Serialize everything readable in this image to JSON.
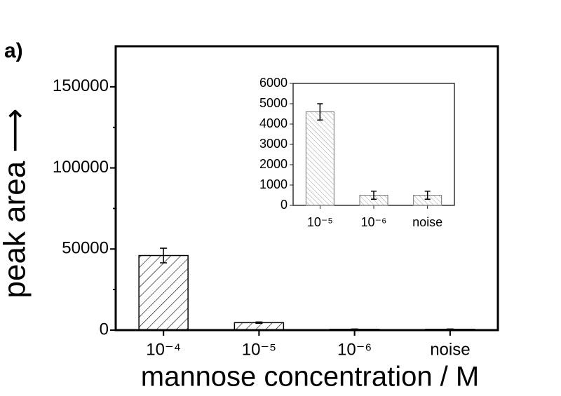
{
  "chart_data": [
    {
      "type": "bar",
      "panel_label": "a)",
      "xlabel": "mannose concentration / M",
      "ylabel": "peak area ⟶",
      "categories": [
        "10⁻⁴",
        "10⁻⁵",
        "10⁻⁶",
        "noise"
      ],
      "values": [
        46000,
        4600,
        500,
        500
      ],
      "errors": [
        4500,
        400,
        200,
        200
      ],
      "ylim": [
        0,
        175000
      ],
      "yticks": [
        0,
        50000,
        100000,
        150000
      ],
      "color": "#000000"
    },
    {
      "type": "bar",
      "categories": [
        "10⁻⁵",
        "10⁻⁶",
        "noise"
      ],
      "values": [
        4600,
        500,
        500
      ],
      "errors": [
        400,
        200,
        200
      ],
      "ylim": [
        0,
        6000
      ],
      "yticks": [
        0,
        1000,
        2000,
        3000,
        4000,
        5000,
        6000
      ],
      "color": "#777777"
    }
  ]
}
